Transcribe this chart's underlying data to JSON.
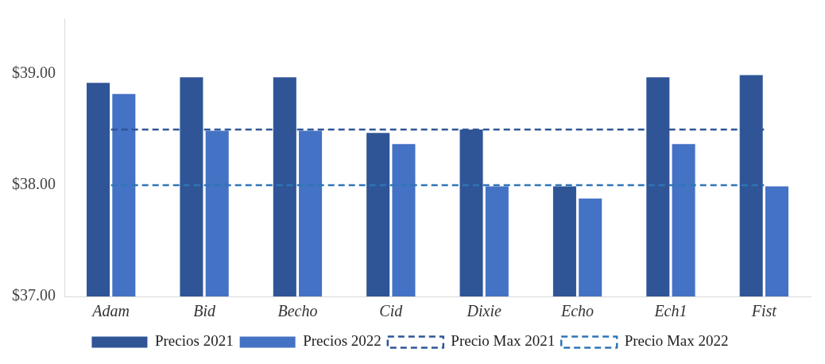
{
  "chart_data": {
    "type": "bar",
    "categories": [
      "Adam",
      "Bid",
      "Becho",
      "Cid",
      "Dixie",
      "Echo",
      "Ech1",
      "Fist"
    ],
    "series": [
      {
        "name": "Precios 2021",
        "color": "#2f5597",
        "values": [
          38.92,
          38.97,
          38.97,
          38.47,
          38.5,
          37.99,
          38.97,
          38.99
        ]
      },
      {
        "name": "Precios 2022",
        "color": "#4472c4",
        "values": [
          38.82,
          38.49,
          38.49,
          38.37,
          37.99,
          37.88,
          38.37,
          37.99
        ]
      },
      {
        "name": "Precio Max 2021",
        "type": "line",
        "line_style": "dashed",
        "color": "#2f5597",
        "values": [
          38.5,
          38.5,
          38.5,
          38.5,
          38.5,
          38.5,
          38.5,
          38.5
        ]
      },
      {
        "name": "Precio Max 2022",
        "type": "line",
        "line_style": "dashed",
        "color": "#2e75b6",
        "values": [
          38,
          38,
          38,
          38,
          38,
          38,
          38,
          38
        ]
      }
    ],
    "ylim": [
      37,
      39.5
    ],
    "yticks": [
      {
        "value": 37,
        "label": "$37.00"
      },
      {
        "value": 38,
        "label": "$38.00"
      },
      {
        "value": 39,
        "label": "$39.00"
      }
    ],
    "grid": false,
    "legend": "bottom",
    "marker": "none"
  }
}
